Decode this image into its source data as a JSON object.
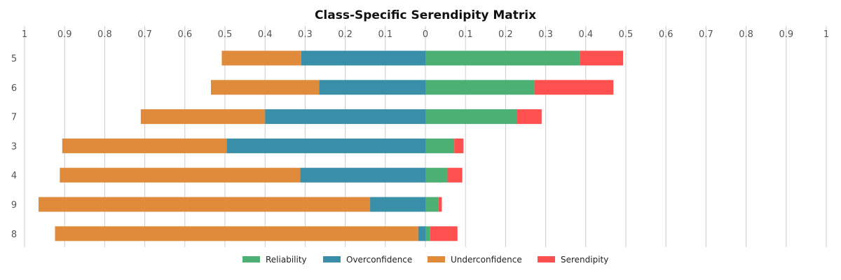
{
  "chart_data": {
    "type": "bar",
    "orientation": "horizontal",
    "stacked": "diverging",
    "title": "Class-Specific Serendipity Matrix",
    "xlabel": "",
    "ylabel": "",
    "xlim": [
      -1,
      1
    ],
    "x_tick_values": [
      -1,
      -0.9,
      -0.8,
      -0.7,
      -0.6,
      -0.5,
      -0.4,
      -0.3,
      -0.2,
      -0.1,
      0,
      0.1,
      0.2,
      0.3,
      0.4,
      0.5,
      0.6,
      0.7,
      0.8,
      0.9,
      1
    ],
    "x_tick_labels": [
      "1",
      "0.9",
      "0.8",
      "0.7",
      "0.6",
      "0.5",
      "0.4",
      "0.3",
      "0.2",
      "0.1",
      "0",
      "0.1",
      "0.2",
      "0.3",
      "0.4",
      "0.5",
      "0.6",
      "0.7",
      "0.8",
      "0.9",
      "1"
    ],
    "x_axis_position": "top",
    "grid": "vertical",
    "legend_position": "bottom-center",
    "categories": [
      "5",
      "6",
      "7",
      "3",
      "4",
      "9",
      "8"
    ],
    "series": [
      {
        "name": "Reliability",
        "color": "#4caf73",
        "side": "right",
        "values": [
          0.385,
          0.272,
          0.228,
          0.072,
          0.055,
          0.032,
          0.012
        ]
      },
      {
        "name": "Overconfidence",
        "color": "#3a8fa8",
        "side": "left",
        "values": [
          0.31,
          0.265,
          0.4,
          0.496,
          0.312,
          0.138,
          0.018
        ]
      },
      {
        "name": "Underconfidence",
        "color": "#e08a3c",
        "side": "left",
        "values": [
          0.198,
          0.27,
          0.31,
          0.41,
          0.6,
          0.827,
          0.906
        ]
      },
      {
        "name": "Serendipity",
        "color": "#ff5050",
        "side": "right",
        "values": [
          0.108,
          0.197,
          0.062,
          0.023,
          0.037,
          0.009,
          0.068
        ]
      }
    ]
  }
}
